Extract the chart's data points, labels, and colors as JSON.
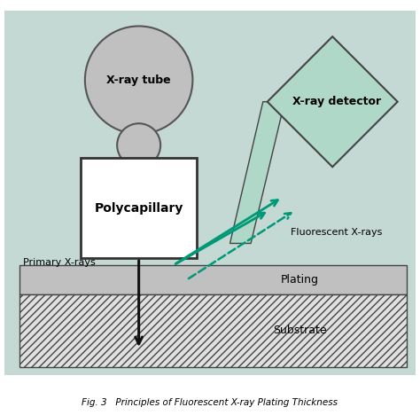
{
  "bg_color": "#c5d9d4",
  "fig_bg": "#ffffff",
  "title_text": "Fig. 3   Principles of Fluorescent X-ray Plating Thickness",
  "xray_tube_label": "X-ray tube",
  "polycapillary_label": "Polycapillary",
  "detector_label": "X-ray detector",
  "primary_label": "Primary X-rays",
  "fluorescent_label": "Fluorescent X-rays",
  "plating_label": "Plating",
  "substrate_label": "Substrate",
  "circle_color": "#c0c0c0",
  "circle_edge": "#555555",
  "poly_box_color": "#ffffff",
  "poly_box_edge": "#333333",
  "detector_color": "#b0d8c8",
  "detector_edge": "#444444",
  "plating_color": "#c0c0c0",
  "plating_edge": "#444444",
  "substrate_hatch": "////",
  "substrate_color": "#e0e0e0",
  "arrow_primary_color": "#111111",
  "arrow_fluor_solid": "#009977",
  "arrow_fluor_dash": "#009977"
}
